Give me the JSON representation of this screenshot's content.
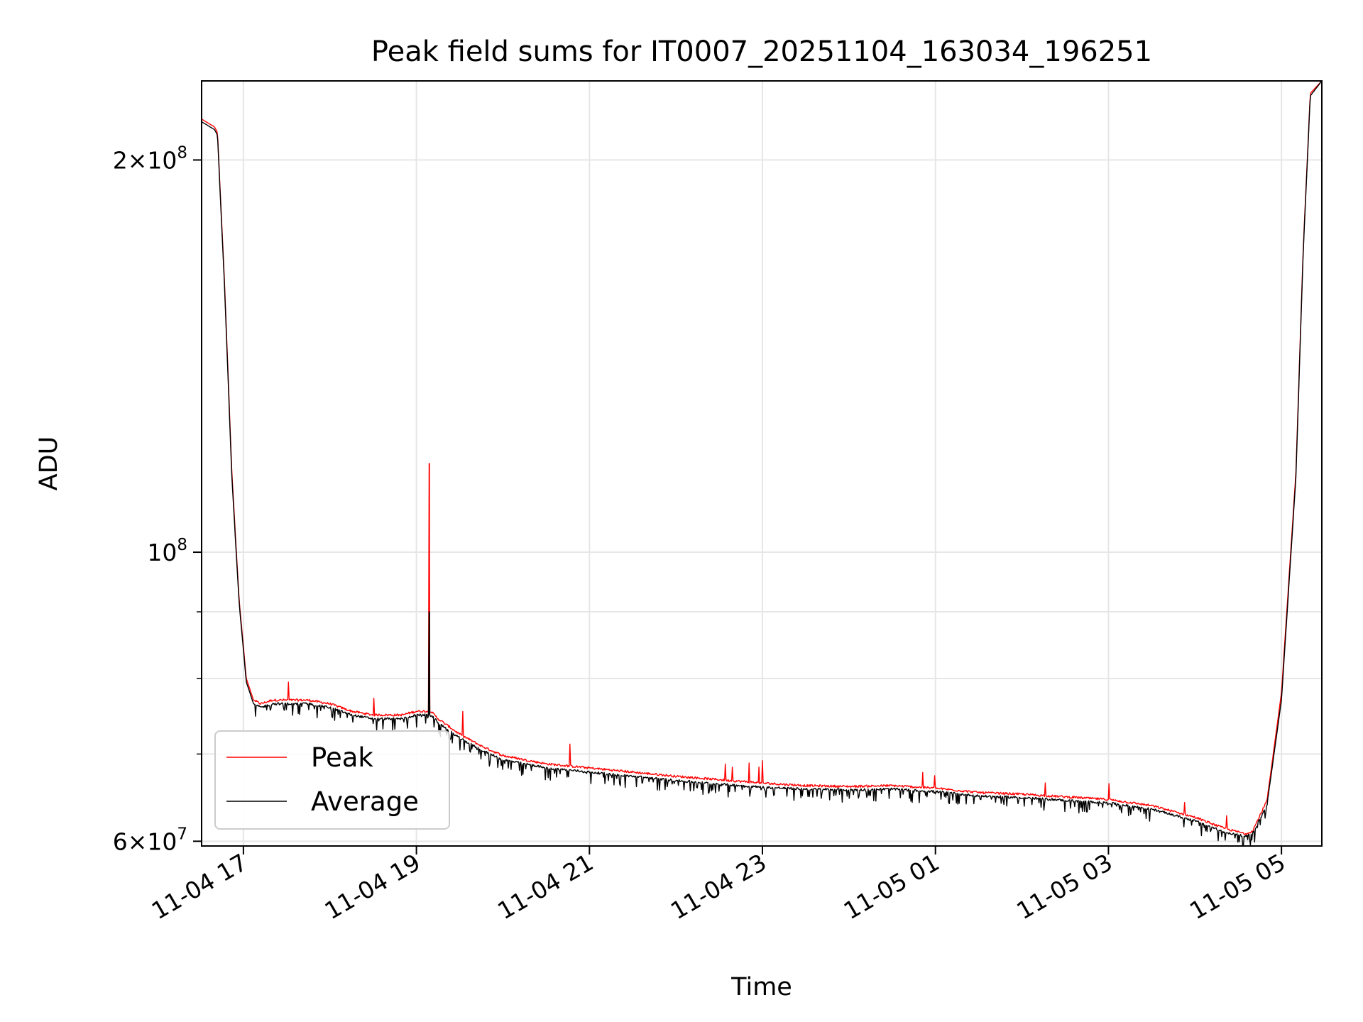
{
  "chart_data": {
    "type": "line",
    "title": "Peak field sums for IT0007_20251104_163034_196251",
    "xlabel": "Time",
    "ylabel": "ADU",
    "yscale": "log",
    "ylim": [
      59500000,
      230000000
    ],
    "xlim": [
      "2025-11-04 16:31",
      "2025-11-05 05:28"
    ],
    "grid": true,
    "legend_position": "lower-left",
    "x_ticks": [
      "11-04 17",
      "11-04 19",
      "11-04 21",
      "11-04 23",
      "11-05 01",
      "11-05 03",
      "11-05 05"
    ],
    "y_ticks": [
      {
        "value": 60000000,
        "label": "6×10",
        "sup": "7"
      },
      {
        "value": 100000000,
        "label": "10",
        "sup": "8"
      },
      {
        "value": 200000000,
        "label": "2×10",
        "sup": "8"
      }
    ],
    "y_minor_grid": [
      70000000,
      80000000,
      90000000
    ],
    "series": [
      {
        "name": "Peak",
        "color": "#ff0000",
        "x": [
          "2025-11-04 16:31",
          "2025-11-04 16:40",
          "2025-11-04 16:42",
          "2025-11-04 16:47",
          "2025-11-04 16:52",
          "2025-11-04 16:57",
          "2025-11-04 17:02",
          "2025-11-04 17:07",
          "2025-11-04 17:12",
          "2025-11-04 17:20",
          "2025-11-04 17:30",
          "2025-11-04 17:45",
          "2025-11-04 18:00",
          "2025-11-04 18:15",
          "2025-11-04 18:30",
          "2025-11-04 18:50",
          "2025-11-04 19:00",
          "2025-11-04 19:10",
          "2025-11-04 19:15",
          "2025-11-04 19:30",
          "2025-11-04 19:45",
          "2025-11-04 20:00",
          "2025-11-04 20:30",
          "2025-11-04 21:00",
          "2025-11-04 21:30",
          "2025-11-04 22:00",
          "2025-11-04 22:30",
          "2025-11-04 23:00",
          "2025-11-04 23:30",
          "2025-11-05 00:00",
          "2025-11-05 00:30",
          "2025-11-05 01:00",
          "2025-11-05 01:30",
          "2025-11-05 02:00",
          "2025-11-05 02:30",
          "2025-11-05 03:00",
          "2025-11-05 03:30",
          "2025-11-05 04:00",
          "2025-11-05 04:20",
          "2025-11-05 04:35",
          "2025-11-05 04:40",
          "2025-11-05 04:50",
          "2025-11-05 05:00",
          "2025-11-05 05:10",
          "2025-11-05 05:15",
          "2025-11-05 05:20",
          "2025-11-05 05:28"
        ],
        "values": [
          215000000,
          212000000,
          210000000,
          160000000,
          115000000,
          92000000,
          80000000,
          77000000,
          76500000,
          77000000,
          77000000,
          77000000,
          76500000,
          75500000,
          75000000,
          75000000,
          75500000,
          75500000,
          74500000,
          72500000,
          71000000,
          69800000,
          68800000,
          68300000,
          67800000,
          67300000,
          66900000,
          66500000,
          66200000,
          66100000,
          66200000,
          65900000,
          65400000,
          65200000,
          64900000,
          64600000,
          63900000,
          62600000,
          61400000,
          60800000,
          61100000,
          64500000,
          78000000,
          115000000,
          170000000,
          225000000,
          230000000
        ],
        "spikes": [
          [
            "2025-11-04 19:09",
            117000000
          ]
        ]
      },
      {
        "name": "Average",
        "color": "#000000",
        "x": [
          "2025-11-04 16:31",
          "2025-11-04 16:40",
          "2025-11-04 16:42",
          "2025-11-04 16:47",
          "2025-11-04 16:52",
          "2025-11-04 16:57",
          "2025-11-04 17:02",
          "2025-11-04 17:07",
          "2025-11-04 17:12",
          "2025-11-04 17:20",
          "2025-11-04 17:30",
          "2025-11-04 17:45",
          "2025-11-04 18:00",
          "2025-11-04 18:15",
          "2025-11-04 18:30",
          "2025-11-04 18:50",
          "2025-11-04 19:00",
          "2025-11-04 19:10",
          "2025-11-04 19:15",
          "2025-11-04 19:30",
          "2025-11-04 19:45",
          "2025-11-04 20:00",
          "2025-11-04 20:30",
          "2025-11-04 21:00",
          "2025-11-04 21:30",
          "2025-11-04 22:00",
          "2025-11-04 22:30",
          "2025-11-04 23:00",
          "2025-11-04 23:30",
          "2025-11-05 00:00",
          "2025-11-05 00:30",
          "2025-11-05 01:00",
          "2025-11-05 01:30",
          "2025-11-05 02:00",
          "2025-11-05 02:30",
          "2025-11-05 03:00",
          "2025-11-05 03:30",
          "2025-11-05 04:00",
          "2025-11-05 04:20",
          "2025-11-05 04:35",
          "2025-11-05 04:40",
          "2025-11-05 04:50",
          "2025-11-05 05:00",
          "2025-11-05 05:10",
          "2025-11-05 05:15",
          "2025-11-05 05:20",
          "2025-11-05 05:28"
        ],
        "values": [
          214000000,
          211000000,
          209000000,
          159000000,
          114000000,
          91500000,
          79500000,
          76500000,
          76000000,
          76500000,
          76500000,
          76500000,
          76000000,
          75000000,
          74500000,
          74500000,
          75000000,
          75000000,
          74000000,
          72000000,
          70500000,
          69300000,
          68300000,
          67800000,
          67300000,
          66800000,
          66400000,
          66000000,
          65800000,
          65700000,
          65800000,
          65500000,
          65000000,
          64800000,
          64500000,
          64200000,
          63500000,
          62200000,
          61000000,
          60500000,
          60800000,
          64000000,
          77000000,
          114000000,
          169000000,
          224000000,
          230000000
        ],
        "spikes": [
          [
            "2025-11-04 19:09",
            90000000
          ]
        ]
      }
    ]
  }
}
